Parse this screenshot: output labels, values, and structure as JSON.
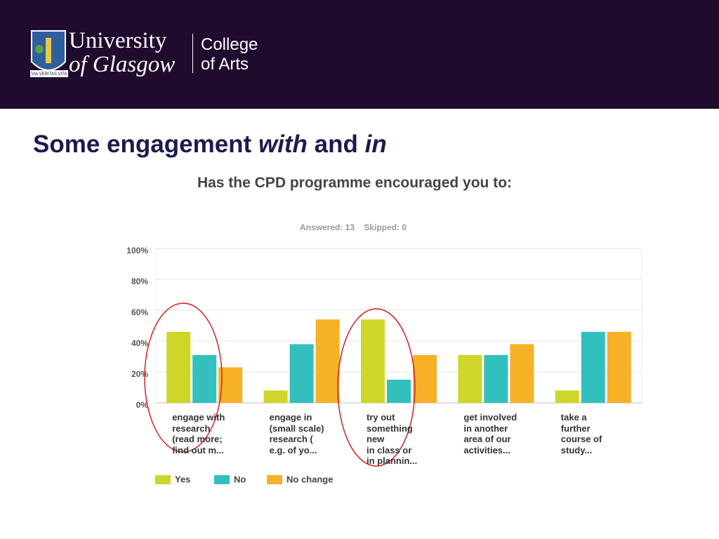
{
  "header": {
    "university_line1": "University",
    "university_line2": "of Glasgow",
    "college_line1": "College",
    "college_line2": "of Arts",
    "crest_motto": "VIA VERITAS VITA"
  },
  "slide_title": {
    "part1": "Some engagement",
    "part2": "with",
    "part3": "and",
    "part4": "in"
  },
  "chart_data": {
    "type": "bar",
    "title": "Has the CPD programme encouraged you to:",
    "subtitle": "Answered: 13    Skipped: 0",
    "categories": [
      "engage with\nresearch\n(read more;\nfind out m...",
      "engage in\n(small scale)\nresearch (\ne.g. of yo...",
      "try out\nsomething\nnew\nin class or\nin plannin...",
      "get involved\nin another\narea of our\nactivities...",
      "take a\nfurther\ncourse of\nstudy..."
    ],
    "series": [
      {
        "name": "Yes",
        "color": "#cdd629",
        "values": [
          46,
          8,
          54,
          31,
          8
        ]
      },
      {
        "name": "No",
        "color": "#34bfbf",
        "values": [
          31,
          38,
          15,
          31,
          46
        ]
      },
      {
        "name": "No change",
        "color": "#f6b126",
        "values": [
          23,
          54,
          31,
          38,
          46
        ]
      }
    ],
    "ylim": [
      0,
      100
    ],
    "yticks": [
      {
        "value": 0,
        "label": "0%"
      },
      {
        "value": 20,
        "label": "20%"
      },
      {
        "value": 40,
        "label": "40%"
      },
      {
        "value": 60,
        "label": "60%"
      },
      {
        "value": 80,
        "label": "80%"
      },
      {
        "value": 100,
        "label": "100%"
      }
    ],
    "grid": true,
    "legend": "bottom-left"
  }
}
